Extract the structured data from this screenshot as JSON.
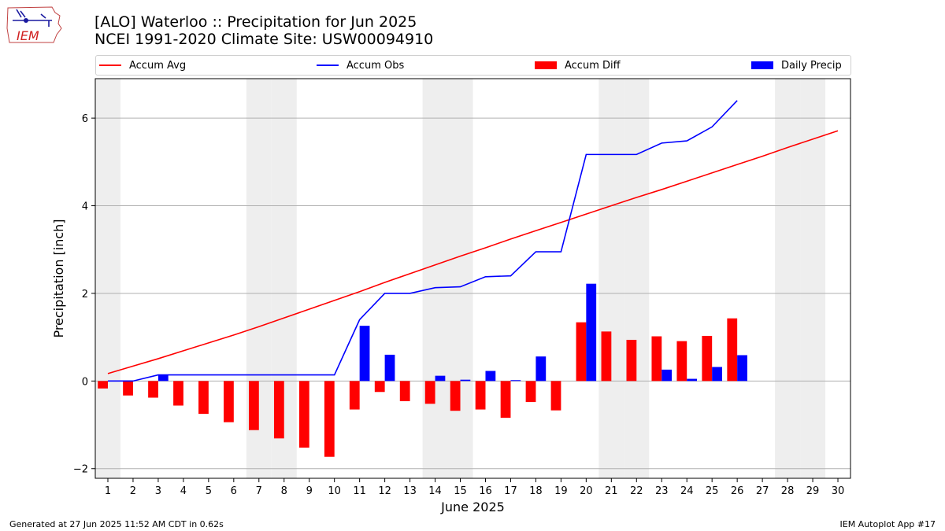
{
  "logo": {
    "text": "IEM"
  },
  "title": {
    "line1": "[ALO] Waterloo :: Precipitation for Jun 2025",
    "line2": "NCEI 1991-2020 Climate Site: USW00094910"
  },
  "legend": {
    "position": "top",
    "items": [
      {
        "label": "Accum Avg",
        "kind": "line",
        "color": "#ff0000"
      },
      {
        "label": "Accum Obs",
        "kind": "line",
        "color": "#0000ff"
      },
      {
        "label": "Accum Diff",
        "kind": "bar",
        "color": "#ff0000"
      },
      {
        "label": "Daily Precip",
        "kind": "bar",
        "color": "#0000ff"
      }
    ]
  },
  "footer": {
    "left": "Generated at 27 Jun 2025 11:52 AM CDT in 0.62s",
    "right": "IEM Autoplot App #17"
  },
  "chart_data": {
    "type": "bar",
    "xlabel": "June 2025",
    "ylabel": "Precipitation [inch]",
    "xlim": [
      0.5,
      30.5
    ],
    "ylim": [
      -2.22,
      6.9
    ],
    "yticks": [
      -2,
      0,
      2,
      4,
      6
    ],
    "grid": "horizontal",
    "weekend_shading_days": [
      1,
      7,
      8,
      14,
      15,
      21,
      22,
      28,
      29
    ],
    "shade_color": "#eeeeee",
    "days": [
      1,
      2,
      3,
      4,
      5,
      6,
      7,
      8,
      9,
      10,
      11,
      12,
      13,
      14,
      15,
      16,
      17,
      18,
      19,
      20,
      21,
      22,
      23,
      24,
      25,
      26,
      27,
      28,
      29,
      30
    ],
    "series": [
      {
        "name": "Accum Avg",
        "type": "line",
        "color": "#ff0000",
        "values": [
          0.17,
          0.34,
          0.51,
          0.69,
          0.87,
          1.05,
          1.24,
          1.44,
          1.64,
          1.84,
          2.04,
          2.25,
          2.45,
          2.65,
          2.85,
          3.04,
          3.24,
          3.43,
          3.62,
          3.81,
          4.0,
          4.19,
          4.37,
          4.56,
          4.75,
          4.94,
          5.13,
          5.33,
          5.52,
          5.71
        ]
      },
      {
        "name": "Accum Obs",
        "type": "line",
        "color": "#0000ff",
        "values": [
          0.0,
          0.0,
          0.14,
          0.14,
          0.14,
          0.14,
          0.14,
          0.14,
          0.14,
          0.14,
          1.4,
          2.0,
          2.0,
          2.13,
          2.15,
          2.38,
          2.4,
          2.95,
          2.95,
          5.17,
          5.17,
          5.17,
          5.43,
          5.48,
          5.8,
          6.4
        ]
      },
      {
        "name": "Accum Diff",
        "type": "bar",
        "color": "#ff0000",
        "values": [
          -0.17,
          -0.33,
          -0.38,
          -0.56,
          -0.75,
          -0.94,
          -1.12,
          -1.31,
          -1.52,
          -1.73,
          -0.65,
          -0.25,
          -0.46,
          -0.52,
          -0.68,
          -0.65,
          -0.84,
          -0.48,
          -0.67,
          1.34,
          1.13,
          0.94,
          1.02,
          0.91,
          1.03,
          1.43
        ]
      },
      {
        "name": "Daily Precip",
        "type": "bar",
        "color": "#0000ff",
        "values": [
          0.0,
          0.0,
          0.14,
          0.0,
          0.0,
          0.0,
          0.0,
          0.0,
          0.0,
          0.0,
          1.26,
          0.6,
          0.0,
          0.12,
          0.03,
          0.23,
          0.02,
          0.56,
          0.0,
          2.22,
          0.0,
          0.0,
          0.26,
          0.05,
          0.32,
          0.59
        ]
      }
    ]
  }
}
